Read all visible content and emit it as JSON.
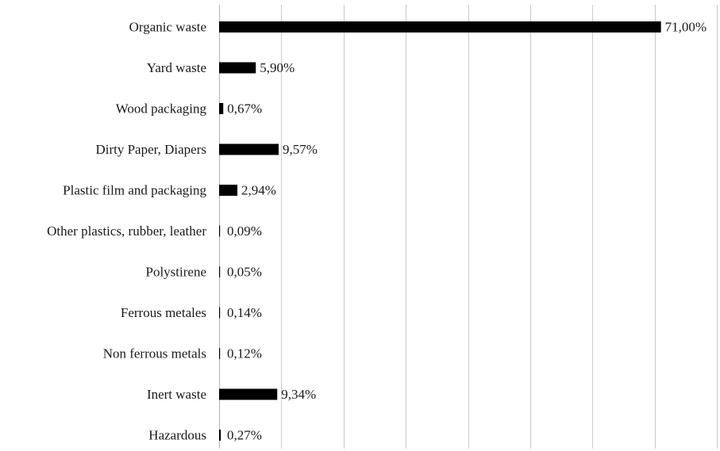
{
  "chart_data": {
    "type": "bar",
    "orientation": "horizontal",
    "categories": [
      "Organic waste",
      "Yard waste",
      "Wood packaging",
      "Dirty Paper, Diapers",
      "Plastic film and packaging",
      "Other plastics, rubber, leather",
      "Polystirene",
      "Ferrous metales",
      "Non ferrous metals",
      "Inert waste",
      "Hazardous"
    ],
    "values": [
      71.0,
      5.9,
      0.67,
      9.57,
      2.94,
      0.09,
      0.05,
      0.14,
      0.12,
      9.34,
      0.27
    ],
    "data_labels": [
      "71,00%",
      "5,90%",
      "0,67%",
      "9,57%",
      "2,94%",
      "0,09%",
      "0,05%",
      "0,14%",
      "0,12%",
      "9,34%",
      "0,27%"
    ],
    "xlim": [
      0,
      80
    ],
    "x_gridline_step": 10,
    "grid": true,
    "legend": "none",
    "bar_color": "#000000",
    "title": "",
    "xlabel": "",
    "ylabel": ""
  }
}
